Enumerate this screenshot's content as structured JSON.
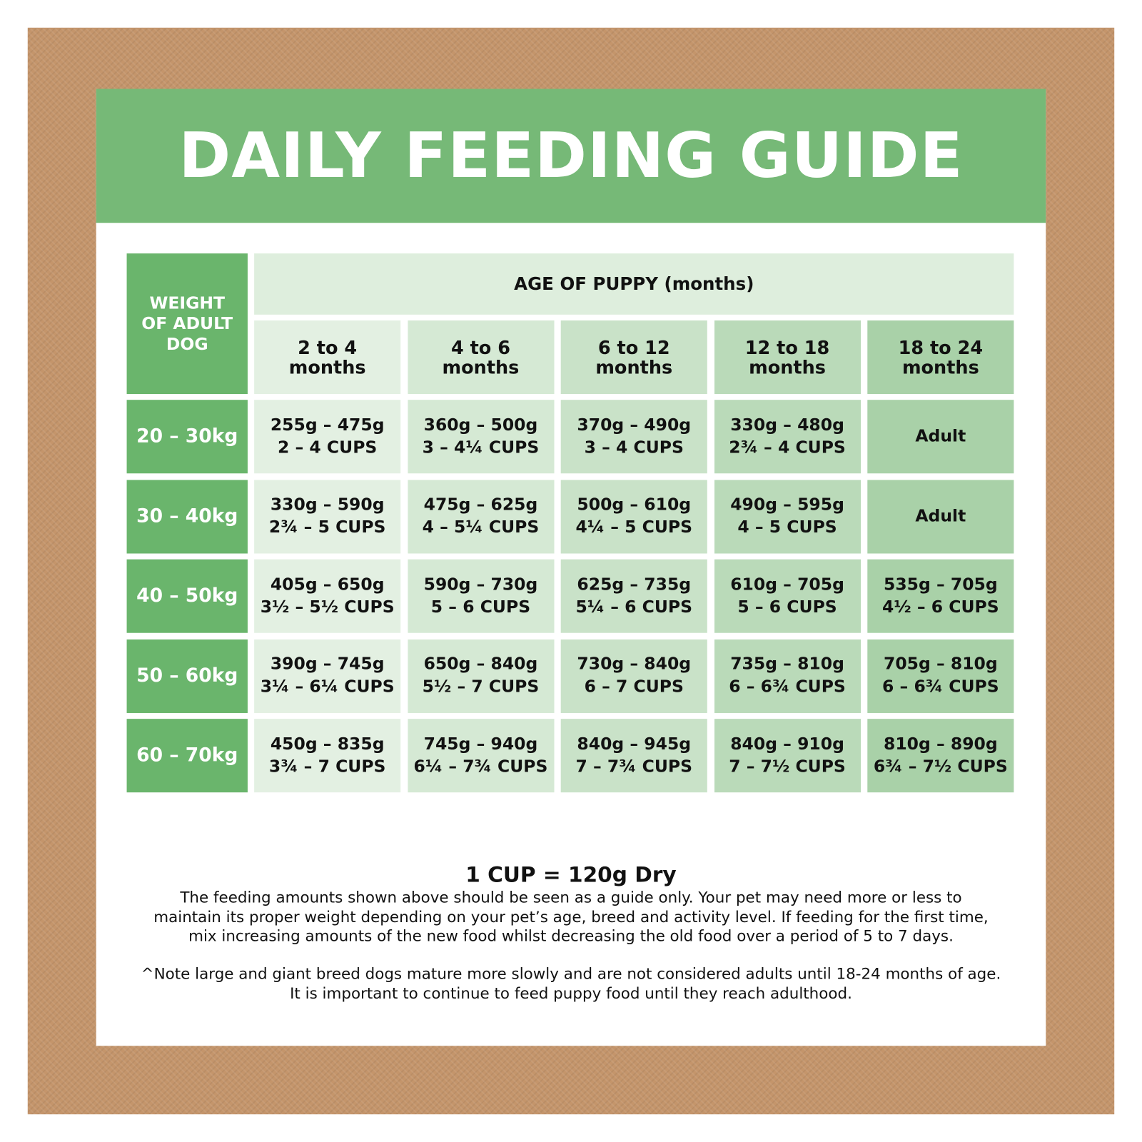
{
  "title": "DAILY FEEDING GUIDE",
  "table": {
    "corner": [
      "WEIGHT",
      "OF ADULT",
      "DOG"
    ],
    "group_header": "AGE OF PUPPY (months)",
    "columns": [
      [
        "2 to 4",
        "months"
      ],
      [
        "4 to 6",
        "months"
      ],
      [
        "6 to 12",
        "months"
      ],
      [
        "12 to 18",
        "months"
      ],
      [
        "18 to 24",
        "months"
      ]
    ],
    "rows": [
      {
        "weight": "20 – 30kg",
        "cells": [
          [
            "255g – 475g",
            "2 – 4 CUPS"
          ],
          [
            "360g – 500g",
            "3 – 4¼ CUPS"
          ],
          [
            "370g – 490g",
            "3 – 4 CUPS"
          ],
          [
            "330g – 480g",
            "2¾ – 4 CUPS"
          ],
          [
            "Adult"
          ]
        ]
      },
      {
        "weight": "30 – 40kg",
        "cells": [
          [
            "330g – 590g",
            "2¾ – 5 CUPS"
          ],
          [
            "475g – 625g",
            "4 – 5¼ CUPS"
          ],
          [
            "500g – 610g",
            "4¼ – 5 CUPS"
          ],
          [
            "490g – 595g",
            "4 – 5 CUPS"
          ],
          [
            "Adult"
          ]
        ]
      },
      {
        "weight": "40 – 50kg",
        "cells": [
          [
            "405g – 650g",
            "3½ – 5½ CUPS"
          ],
          [
            "590g – 730g",
            "5 – 6 CUPS"
          ],
          [
            "625g – 735g",
            "5¼ – 6 CUPS"
          ],
          [
            "610g – 705g",
            "5 – 6 CUPS"
          ],
          [
            "535g – 705g",
            "4½ – 6 CUPS"
          ]
        ]
      },
      {
        "weight": "50 – 60kg",
        "cells": [
          [
            "390g – 745g",
            "3¼ – 6¼ CUPS"
          ],
          [
            "650g – 840g",
            "5½ – 7 CUPS"
          ],
          [
            "730g – 840g",
            "6 – 7 CUPS"
          ],
          [
            "735g – 810g",
            "6 – 6¾ CUPS"
          ],
          [
            "705g – 810g",
            "6 – 6¾ CUPS"
          ]
        ]
      },
      {
        "weight": "60 – 70kg",
        "cells": [
          [
            "450g – 835g",
            "3¾ – 7 CUPS"
          ],
          [
            "745g – 940g",
            "6¼ – 7¾ CUPS"
          ],
          [
            "840g – 945g",
            "7 – 7¾ CUPS"
          ],
          [
            "840g – 910g",
            "7 – 7½ CUPS"
          ],
          [
            "810g – 890g",
            "6¾ – 7½ CUPS"
          ]
        ]
      }
    ]
  },
  "footer": {
    "cup_note": "1 CUP = 120g Dry",
    "paragraph": [
      "The feeding amounts shown above should be seen as a guide only. Your pet may need more or less to",
      "maintain its proper weight depending on your pet’s age, breed and activity level. If feeding for the first time,",
      "mix increasing amounts of the new food whilst decreasing the old food over a period of 5 to 7 days."
    ],
    "note": [
      "^Note large and giant breed dogs mature more slowly and are not considered adults until 18-24 months of age.",
      "It is important to continue to feed puppy food until they reach adulthood."
    ]
  }
}
